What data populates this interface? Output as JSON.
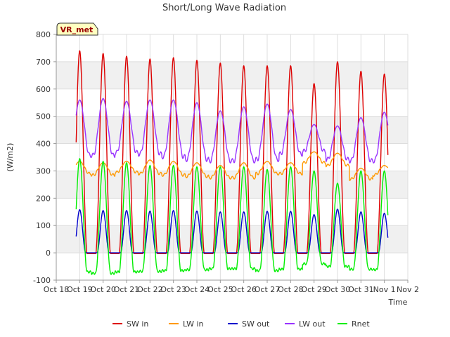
{
  "chart_data": {
    "type": "line",
    "title": "Short/Long Wave Radiation",
    "xlabel": "Time",
    "ylabel": "(W/m2)",
    "station_label": "VR_met",
    "ylim": [
      -100,
      800
    ],
    "yticks": [
      -100,
      0,
      100,
      200,
      300,
      400,
      500,
      600,
      700,
      800
    ],
    "xlim": [
      0,
      15
    ],
    "xticks": [
      {
        "value": 0,
        "label": "Oct 18"
      },
      {
        "value": 1,
        "label": "Oct 19"
      },
      {
        "value": 2,
        "label": "Oct 20"
      },
      {
        "value": 3,
        "label": "Oct 21"
      },
      {
        "value": 4,
        "label": "Oct 22"
      },
      {
        "value": 5,
        "label": "Oct 23"
      },
      {
        "value": 6,
        "label": "Oct 24"
      },
      {
        "value": 7,
        "label": "Oct 25"
      },
      {
        "value": 8,
        "label": "Oct 26"
      },
      {
        "value": 9,
        "label": "Oct 27"
      },
      {
        "value": 10,
        "label": "Oct 28"
      },
      {
        "value": 11,
        "label": "Oct 29"
      },
      {
        "value": 12,
        "label": "Oct 30"
      },
      {
        "value": 13,
        "label": "Oct 31"
      },
      {
        "value": 14,
        "label": "Nov 1"
      },
      {
        "value": 15,
        "label": "Nov 2"
      }
    ],
    "legend_position": "bottom",
    "grid": true,
    "series": [
      {
        "name": "SW in",
        "color": "#dd0000",
        "daily_peak": [
          740,
          730,
          720,
          710,
          715,
          705,
          695,
          685,
          685,
          685,
          620,
          700,
          665,
          655
        ],
        "night_value": -3
      },
      {
        "name": "LW in",
        "color": "#ff9900",
        "daily_peak": [
          335,
          330,
          335,
          340,
          335,
          330,
          320,
          330,
          335,
          330,
          370,
          365,
          310,
          320
        ],
        "daily_trough": [
          290,
          285,
          295,
          290,
          285,
          280,
          275,
          275,
          290,
          290,
          330,
          320,
          270,
          285
        ]
      },
      {
        "name": "SW out",
        "color": "#0000cc",
        "daily_peak": [
          158,
          155,
          155,
          153,
          155,
          153,
          150,
          150,
          152,
          152,
          140,
          160,
          150,
          145
        ],
        "night_value": 0
      },
      {
        "name": "LW out",
        "color": "#9933ff",
        "daily_peak": [
          560,
          565,
          555,
          560,
          560,
          550,
          520,
          535,
          545,
          525,
          470,
          465,
          495,
          515
        ],
        "daily_trough": [
          360,
          360,
          370,
          365,
          355,
          345,
          340,
          340,
          345,
          365,
          375,
          345,
          340,
          340
        ]
      },
      {
        "name": "Rnet",
        "color": "#00ee00",
        "daily_peak": [
          345,
          335,
          330,
          320,
          320,
          315,
          315,
          315,
          305,
          315,
          300,
          255,
          300,
          300
        ],
        "daily_trough": [
          -70,
          -75,
          -70,
          -68,
          -65,
          -62,
          -58,
          -58,
          -65,
          -60,
          -40,
          -50,
          -60,
          -62
        ]
      }
    ]
  }
}
